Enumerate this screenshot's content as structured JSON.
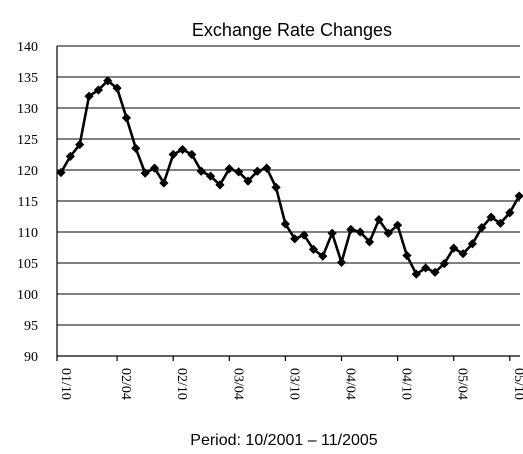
{
  "chart_data": {
    "type": "line",
    "title": "Exchange Rate Changes",
    "subtitle": "Period: 10/2001 – 11/2005",
    "xlabel": "",
    "ylabel": "",
    "ylim": [
      90,
      140
    ],
    "yticks": [
      90,
      95,
      100,
      105,
      110,
      115,
      120,
      125,
      130,
      135,
      140
    ],
    "xtick_labels": [
      "01/10",
      "02/04",
      "02/10",
      "03/04",
      "03/10",
      "04/04",
      "04/10",
      "05/04",
      "05/10"
    ],
    "grid": true,
    "legend": "none",
    "marker": "diamond",
    "colors": {
      "series": "#000000",
      "grid": "#000000",
      "background": "#ffffff"
    },
    "series": [
      {
        "values": [
          119.6,
          122.2,
          124.1,
          131.9,
          132.9,
          134.4,
          133.2,
          128.4,
          123.5,
          119.5,
          120.3,
          117.9,
          122.5,
          123.3,
          122.5,
          119.8,
          119.0,
          117.6,
          120.2,
          119.7,
          118.2,
          119.8,
          120.3,
          117.2,
          111.3,
          108.9,
          109.5,
          107.2,
          106.1,
          109.8,
          105.1,
          110.4,
          110.0,
          108.4,
          112.0,
          109.8,
          111.1,
          106.2,
          103.2,
          104.2,
          103.5,
          104.9,
          107.4,
          106.5,
          108.1,
          110.7,
          112.4,
          111.4,
          113.1,
          115.8
        ]
      }
    ]
  }
}
